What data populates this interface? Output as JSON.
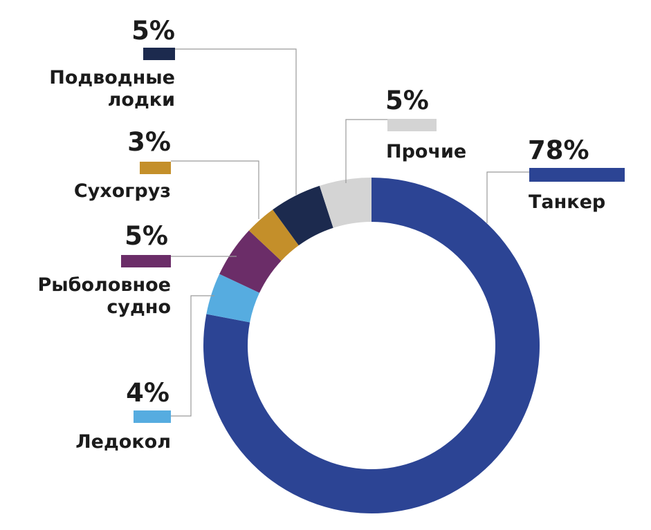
{
  "chart_data": {
    "type": "pie",
    "variant": "donut",
    "categories": [
      "Танкер",
      "Ледокол",
      "Рыболовное судно",
      "Сухогруз",
      "Подводные лодки",
      "Прочие"
    ],
    "values": [
      78,
      4,
      5,
      3,
      5,
      5
    ],
    "value_labels": [
      "78%",
      "4%",
      "5%",
      "3%",
      "5%",
      "5%"
    ],
    "colors": [
      "#2c4494",
      "#56ace0",
      "#6b2d68",
      "#c48f2a",
      "#1c2a4e",
      "#d4d4d4"
    ],
    "legend_placement": "callouts"
  },
  "labels": {
    "tanker": {
      "pct": "78%",
      "lines": [
        "Танкер"
      ]
    },
    "icebreaker": {
      "pct": "4%",
      "lines": [
        "Ледокол"
      ]
    },
    "fishing": {
      "pct": "5%",
      "lines": [
        "Рыболовное",
        "судно"
      ]
    },
    "cargo": {
      "pct": "3%",
      "lines": [
        "Сухогруз"
      ]
    },
    "submarines": {
      "pct": "5%",
      "lines": [
        "Подводные",
        "лодки"
      ]
    },
    "other": {
      "pct": "5%",
      "lines": [
        "Прочие"
      ]
    }
  }
}
